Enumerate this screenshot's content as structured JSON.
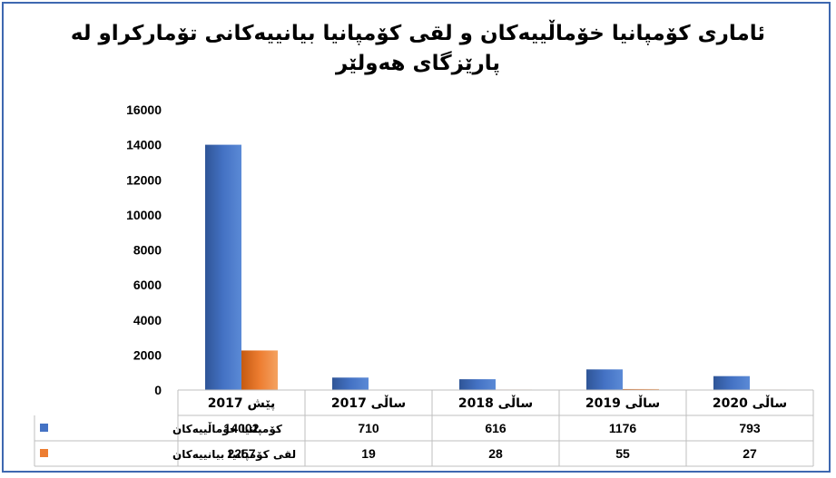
{
  "chart_data": {
    "type": "bar",
    "title_lines": [
      "ئاماری کۆمپانیا خۆماڵییەکان و لقی کۆمپانیا بیانییەکانی تۆمارکراو لە",
      "پارێزگای هەولێر"
    ],
    "categories": [
      "پێش 2017",
      "ساڵی 2017",
      "ساڵی 2018",
      "ساڵی 2019",
      "ساڵی 2020"
    ],
    "series": [
      {
        "name": "کۆمپانیا خۆماڵییەکان",
        "color": "#4472c4",
        "values": [
          14002,
          710,
          616,
          1176,
          793
        ]
      },
      {
        "name": "لقی کۆمپانیا بیانییەکان",
        "color": "#ed7d31",
        "values": [
          2257,
          19,
          28,
          55,
          27
        ]
      }
    ],
    "ylim": [
      0,
      16000
    ],
    "yticks": [
      0,
      2000,
      4000,
      6000,
      8000,
      10000,
      12000,
      14000,
      16000
    ],
    "grid": false,
    "legend": "data table below chart"
  }
}
